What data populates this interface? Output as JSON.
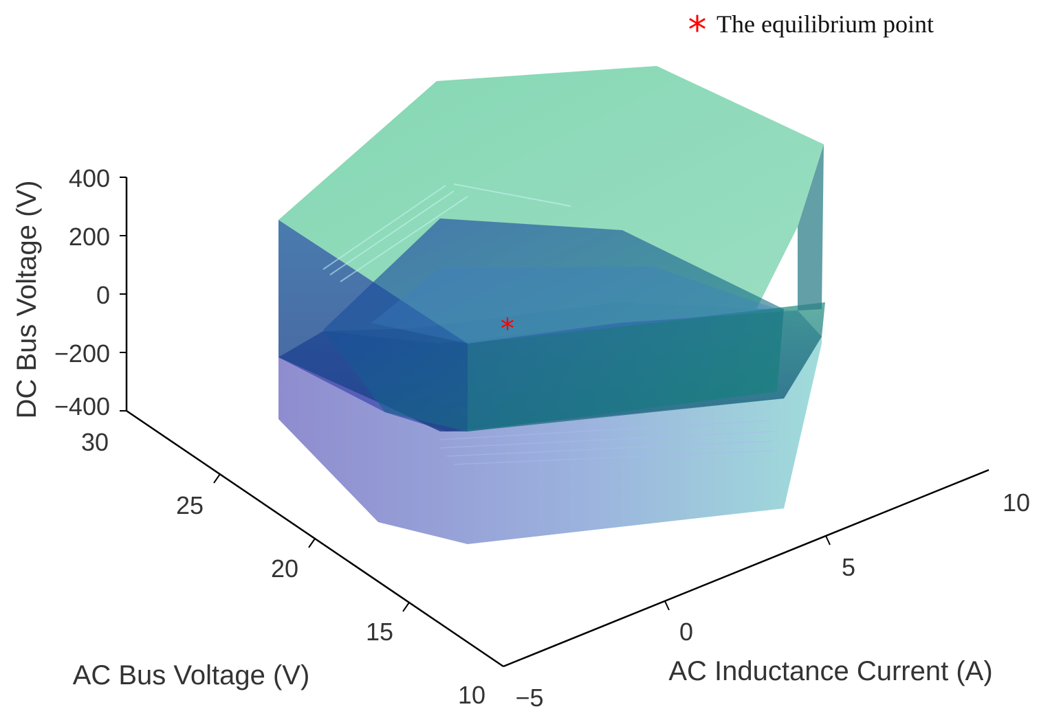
{
  "chart_data": {
    "type": "surface3d",
    "title": "",
    "legend": {
      "placement": "top-right",
      "entries": [
        {
          "label": "The equilibrium point",
          "marker": "*",
          "color": "#ff0000"
        }
      ]
    },
    "axes": {
      "x": {
        "label": "AC Inductance Current (A)",
        "range": [
          -5,
          10
        ],
        "ticks": [
          -5,
          0,
          5,
          10
        ],
        "tick_labels": [
          "−5",
          "0",
          "5",
          "10"
        ]
      },
      "y": {
        "label": "AC Bus Voltage (V)",
        "range": [
          10,
          30
        ],
        "ticks": [
          10,
          15,
          20,
          25,
          30
        ],
        "tick_labels": [
          "10",
          "15",
          "20",
          "25",
          "30"
        ]
      },
      "z": {
        "label": "DC Bus Voltage (V)",
        "range": [
          -400,
          400
        ],
        "ticks": [
          -400,
          -200,
          0,
          200,
          400
        ],
        "tick_labels": [
          "−400",
          "−200",
          "0",
          "200",
          "400"
        ]
      }
    },
    "grid": false,
    "series": [
      {
        "kind": "surface",
        "colormap": "blue-to-green",
        "transparent": true,
        "colors": [
          "#2a3fa8",
          "#7fd6b0"
        ]
      },
      {
        "kind": "point",
        "name": "The equilibrium point",
        "marker": "*",
        "color": "#ff0000"
      }
    ]
  }
}
